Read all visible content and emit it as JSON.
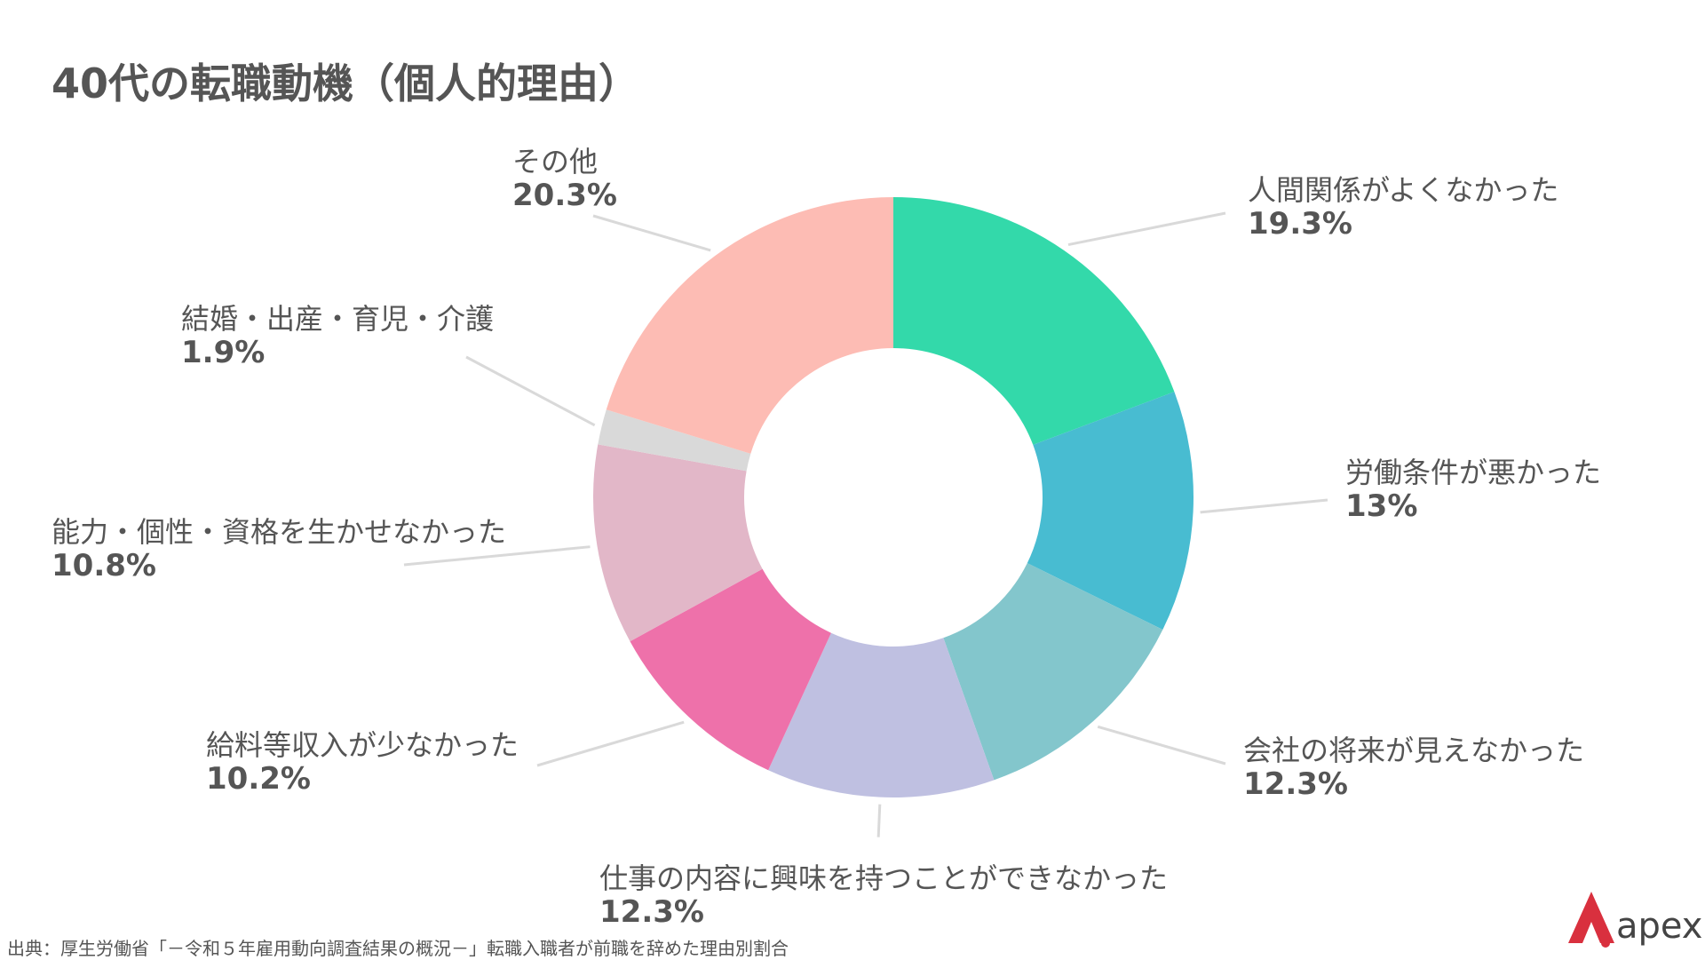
{
  "page": {
    "title": "40代の転職動機（個人的理由）",
    "source": "出典：厚生労働省「－令和５年雇用動向調査結果の概況－」転職入職者が前職を辞めた理由別割合",
    "logo_text": "apex"
  },
  "colors": {
    "text": "#555555",
    "leader_line": "#d9d9d9",
    "logo_red": "#d9303e"
  },
  "chart_data": {
    "type": "pie",
    "donut": true,
    "title": "40代の転職動機（個人的理由）",
    "unit": "%",
    "slices": [
      {
        "label": "人間関係がよくなかった",
        "value": 19.3,
        "value_text": "19.3%",
        "color": "#33d9aa"
      },
      {
        "label": "労働条件が悪かった",
        "value": 13,
        "value_text": "13%",
        "color": "#48bcd1"
      },
      {
        "label": "会社の将来が見えなかった",
        "value": 12.3,
        "value_text": "12.3%",
        "color": "#83c6cc"
      },
      {
        "label": "仕事の内容に興味を持つことができなかった",
        "value": 12.3,
        "value_text": "12.3%",
        "color": "#bfc0e1"
      },
      {
        "label": "給料等収入が少なかった",
        "value": 10.2,
        "value_text": "10.2%",
        "color": "#ee71aa"
      },
      {
        "label": "能力・個性・資格を生かせなかった",
        "value": 10.8,
        "value_text": "10.8%",
        "color": "#e2b7c8"
      },
      {
        "label": "結婚・出産・育児・介護",
        "value": 1.9,
        "value_text": "1.9%",
        "color": "#d9d9d9"
      },
      {
        "label": "その他",
        "value": 20.3,
        "value_text": "20.3%",
        "color": "#fdbcb4"
      }
    ]
  }
}
